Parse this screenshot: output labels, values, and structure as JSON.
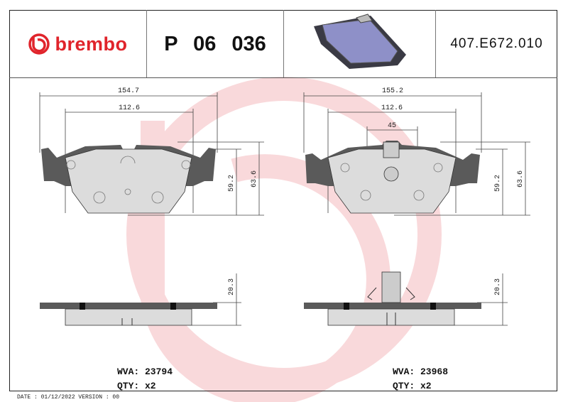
{
  "header": {
    "brand": "brembo",
    "part_number": "P 06 036",
    "reference": "407.E672.010"
  },
  "colors": {
    "brand_red": "#e0242b",
    "pad_lining": "#dcdcdc",
    "pad_plate": "#555555",
    "watermark": "#f7d4d6"
  },
  "left_pad": {
    "dims": {
      "width_total": "154.7",
      "width_inner": "112.6",
      "height_1": "59.2",
      "height_2": "63.6",
      "thickness": "20.3"
    },
    "wva_label": "WVA: 23794",
    "qty_label": "QTY: x2"
  },
  "right_pad": {
    "dims": {
      "width_total": "155.2",
      "width_inner": "112.6",
      "sensor_offset": "45",
      "height_1": "59.2",
      "height_2": "63.6",
      "thickness": "20.3"
    },
    "wva_label": "WVA: 23968",
    "qty_label": "QTY: x2"
  },
  "footer": {
    "text": "DATE : 01/12/2022 VERSION : 00"
  }
}
